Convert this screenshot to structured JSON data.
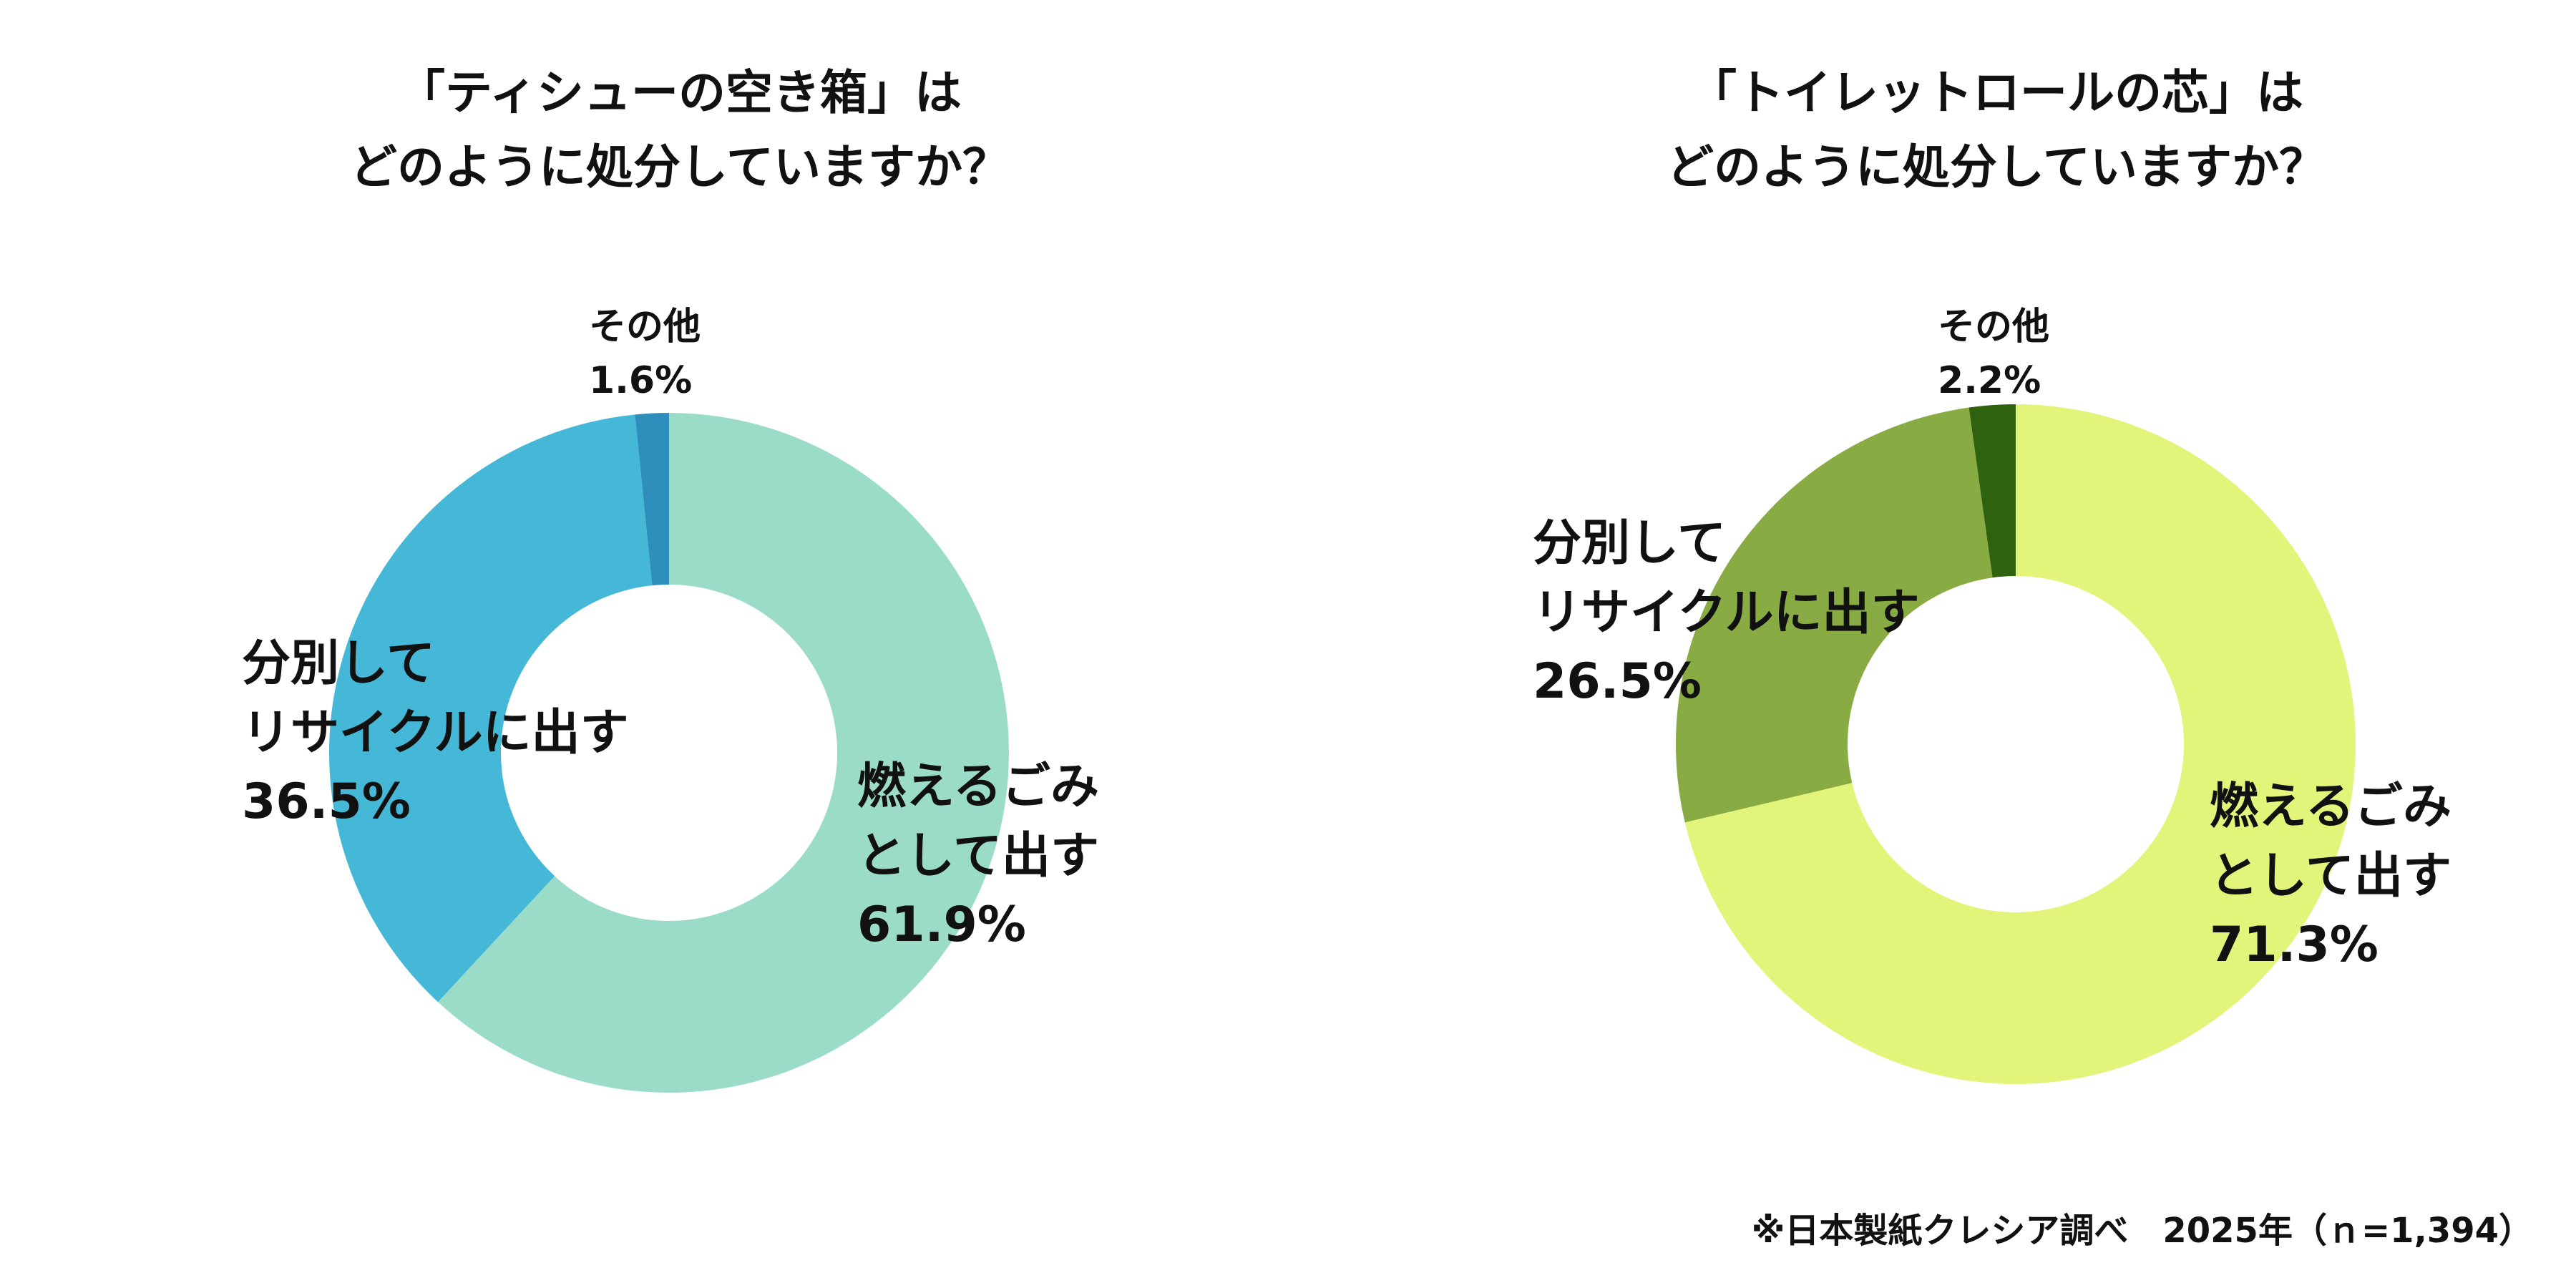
{
  "chart_data": [
    {
      "type": "donut",
      "title_line1": "「ティシューの空き箱」は",
      "title_line2": "どのように処分していますか？",
      "slices": [
        {
          "label_line1": "燃えるごみ",
          "label_line2": "として出す",
          "value": 61.9,
          "value_text": "61.9%",
          "color": "#9adcc8"
        },
        {
          "label_line1": "分別して",
          "label_line2": "リサイクルに出す",
          "value": 36.5,
          "value_text": "36.5%",
          "color": "#44b8d6"
        },
        {
          "label_line1": "その他",
          "label_line2": "",
          "value": 1.6,
          "value_text": "1.6%",
          "color": "#2e8fbd"
        }
      ]
    },
    {
      "type": "donut",
      "title_line1": "「トイレットロールの芯」は",
      "title_line2": "どのように処分していますか？",
      "slices": [
        {
          "label_line1": "燃えるごみ",
          "label_line2": "として出す",
          "value": 71.3,
          "value_text": "71.3%",
          "color": "#e3f47a"
        },
        {
          "label_line1": "分別して",
          "label_line2": "リサイクルに出す",
          "value": 26.5,
          "value_text": "26.5%",
          "color": "#88ab44"
        },
        {
          "label_line1": "その他",
          "label_line2": "",
          "value": 2.2,
          "value_text": "2.2%",
          "color": "#2f620f"
        }
      ]
    }
  ],
  "footnote": "※日本製紙クレシア調べ　2025年（ｎ=1,394）"
}
